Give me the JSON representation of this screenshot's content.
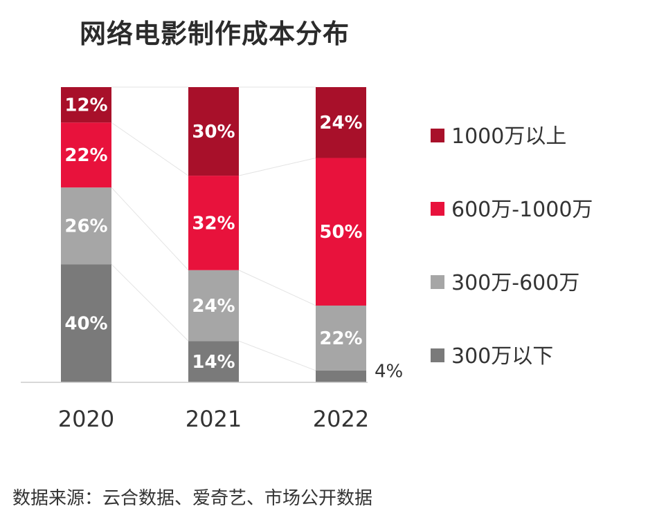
{
  "chart_data": {
    "type": "bar",
    "stacked": true,
    "percent": true,
    "title": "网络电影制作成本分布",
    "categories": [
      "2020",
      "2021",
      "2022"
    ],
    "series": [
      {
        "name": "300万以下",
        "values": [
          40,
          14,
          4
        ],
        "labels": [
          "40%",
          "14%",
          "4%"
        ],
        "color": "#7a7a7a"
      },
      {
        "name": "300万-600万",
        "values": [
          26,
          24,
          22
        ],
        "labels": [
          "26%",
          "24%",
          "22%"
        ],
        "color": "#a6a6a6"
      },
      {
        "name": "600万-1000万",
        "values": [
          22,
          32,
          50
        ],
        "labels": [
          "22%",
          "32%",
          "50%"
        ],
        "color": "#e8123c"
      },
      {
        "name": "1000万以上",
        "values": [
          12,
          30,
          24
        ],
        "labels": [
          "12%",
          "30%",
          "24%"
        ],
        "color": "#a8102a"
      }
    ],
    "legend_position": "right",
    "legend_order": [
      "1000万以上",
      "600万-1000万",
      "300万-600万",
      "300万以下"
    ],
    "ylim": [
      0,
      100
    ],
    "grid": false
  },
  "source": "数据来源：云合数据、爱奇艺、市场公开数据"
}
